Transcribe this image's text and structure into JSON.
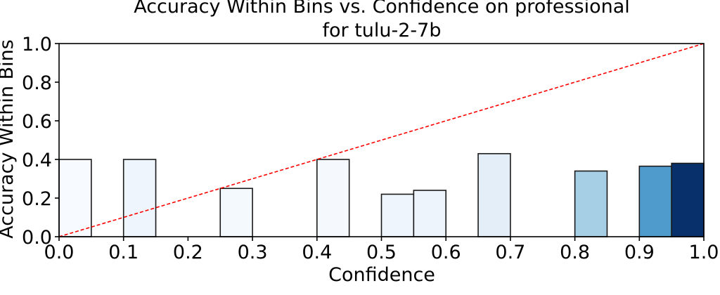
{
  "chart_data": {
    "type": "bar",
    "title": "Accuracy Within Bins vs. Confidence on professional\nfor tulu-2-7b",
    "xlabel": "Confidence",
    "ylabel": "Accuracy Within Bins",
    "xlim": [
      0.0,
      1.0
    ],
    "ylim": [
      0.0,
      1.0
    ],
    "xticks": [
      "0.0",
      "0.1",
      "0.2",
      "0.3",
      "0.4",
      "0.5",
      "0.6",
      "0.7",
      "0.8",
      "0.9",
      "1.0"
    ],
    "yticks": [
      "0.0",
      "0.2",
      "0.4",
      "0.6",
      "0.8",
      "1.0"
    ],
    "bin_width": 0.05,
    "bars": [
      {
        "x": 0.0,
        "value": 0.4,
        "color": "#f7fbff"
      },
      {
        "x": 0.1,
        "value": 0.4,
        "color": "#eef5fc"
      },
      {
        "x": 0.25,
        "value": 0.25,
        "color": "#f4f9fe"
      },
      {
        "x": 0.4,
        "value": 0.4,
        "color": "#f5f9fe"
      },
      {
        "x": 0.5,
        "value": 0.22,
        "color": "#eef5fc"
      },
      {
        "x": 0.55,
        "value": 0.24,
        "color": "#edf4fc"
      },
      {
        "x": 0.65,
        "value": 0.43,
        "color": "#e3eef9"
      },
      {
        "x": 0.8,
        "value": 0.34,
        "color": "#a6cee4"
      },
      {
        "x": 0.9,
        "value": 0.365,
        "color": "#4f9bcb"
      },
      {
        "x": 0.95,
        "value": 0.38,
        "color": "#08306b"
      }
    ],
    "reference_line": {
      "from": [
        0.0,
        0.0
      ],
      "to": [
        1.0,
        1.0
      ],
      "color": "#ff0000",
      "style": "dashed"
    },
    "grid": false,
    "legend": "none"
  }
}
